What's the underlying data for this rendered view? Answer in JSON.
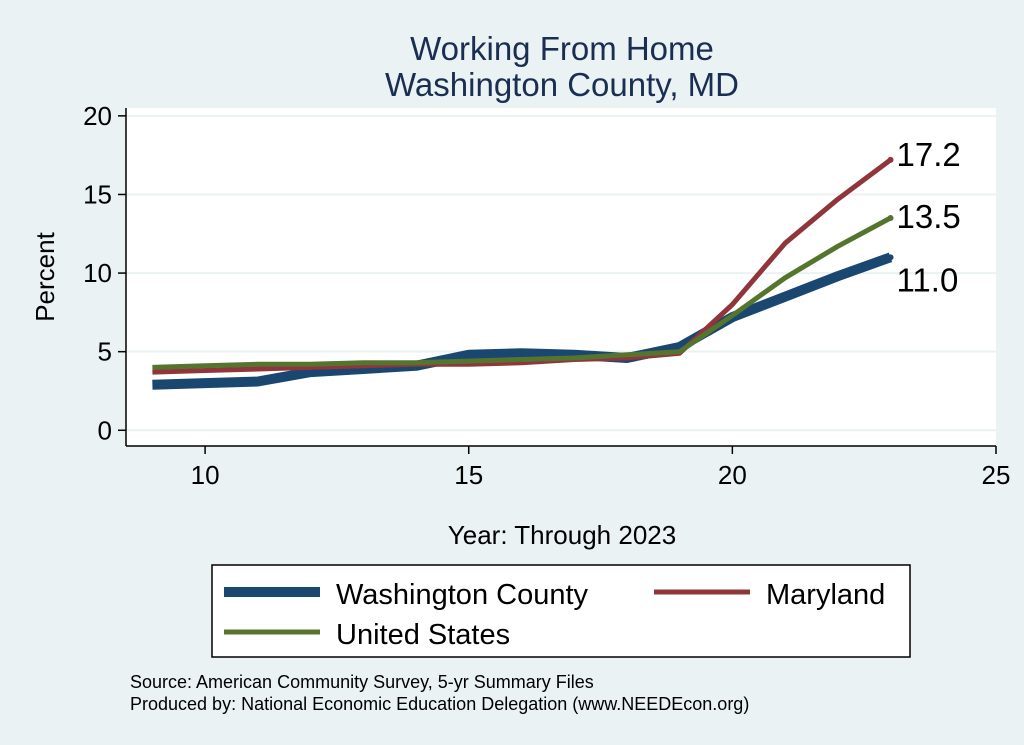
{
  "chart_data": {
    "type": "line",
    "title": [
      "Working From Home",
      "Washington County, MD"
    ],
    "xlabel": "Year: Through 2023",
    "ylabel": "Percent",
    "xlim": [
      8.5,
      25
    ],
    "ylim": [
      -1,
      20.5
    ],
    "xticks": [
      10,
      15,
      20,
      25
    ],
    "yticks": [
      0,
      5,
      10,
      15,
      20
    ],
    "grid": true,
    "legend_position": "bottom",
    "series": [
      {
        "name": "Washington County",
        "color": "#1a476f",
        "x": [
          9,
          10,
          11,
          12,
          13,
          14,
          15,
          16,
          17,
          18,
          19,
          20,
          21,
          22,
          23
        ],
        "values": [
          2.9,
          3.0,
          3.1,
          3.7,
          3.9,
          4.1,
          4.8,
          4.9,
          4.8,
          4.6,
          5.3,
          7.2,
          8.5,
          9.8,
          11.0
        ],
        "end_label": "11.0"
      },
      {
        "name": "Maryland",
        "color": "#90353b",
        "x": [
          9,
          10,
          11,
          12,
          13,
          14,
          15,
          16,
          17,
          18,
          19,
          20,
          21,
          22,
          23
        ],
        "values": [
          3.7,
          3.8,
          3.9,
          4.0,
          4.1,
          4.2,
          4.2,
          4.3,
          4.5,
          4.6,
          4.9,
          8.0,
          11.9,
          14.7,
          17.2
        ],
        "end_label": "17.2"
      },
      {
        "name": "United States",
        "color": "#55752f",
        "x": [
          9,
          10,
          11,
          12,
          13,
          14,
          15,
          16,
          17,
          18,
          19,
          20,
          21,
          22,
          23
        ],
        "values": [
          4.0,
          4.1,
          4.2,
          4.2,
          4.3,
          4.3,
          4.4,
          4.5,
          4.6,
          4.8,
          5.0,
          7.3,
          9.7,
          11.7,
          13.5
        ],
        "end_label": "13.5"
      }
    ]
  },
  "footer": {
    "source": "Source: American Community Survey, 5-yr Summary Files",
    "produced": "Produced by: National Economic Education Delegation (www.NEEDEcon.org)"
  }
}
